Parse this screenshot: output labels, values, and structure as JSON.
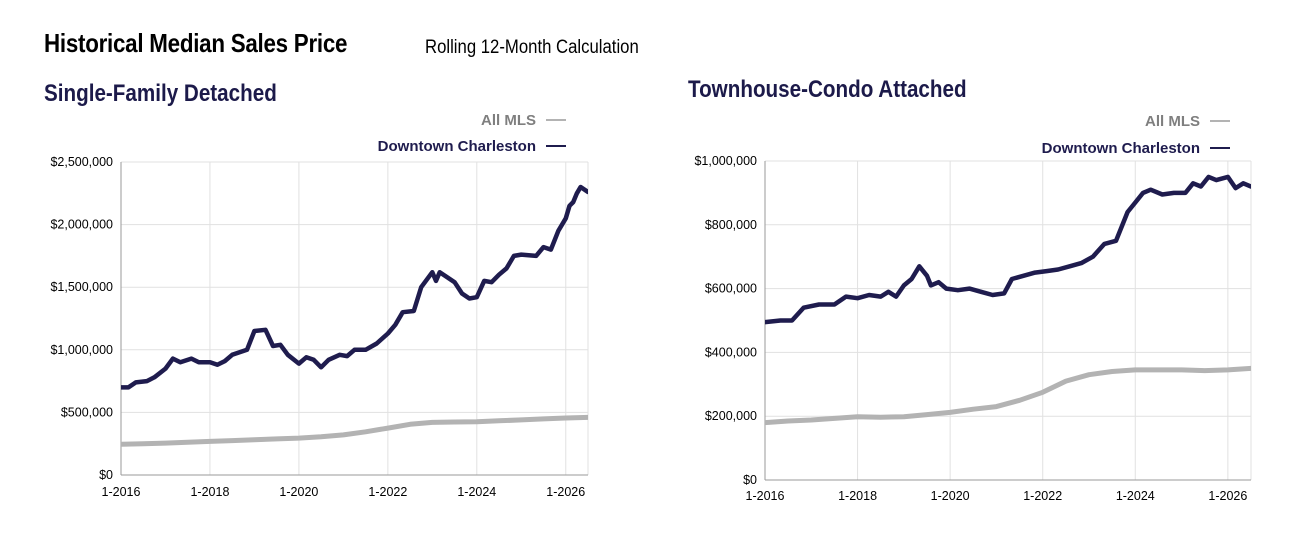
{
  "header": {
    "title": "Historical Median Sales Price",
    "subtitle": "Rolling 12-Month Calculation"
  },
  "colors": {
    "all_mls": "#b3b3b3",
    "downtown": "#1f1c4e",
    "grid": "#e1e1e1",
    "legend_all_mls_text": "#7f7f7f"
  },
  "chart_data": [
    {
      "type": "line",
      "title": "Single-Family Detached",
      "legend": [
        "All MLS",
        "Downtown Charleston"
      ],
      "legend_placement": "top-right",
      "x_ticks": [
        "1-2016",
        "1-2018",
        "1-2020",
        "1-2022",
        "1-2024",
        "1-2026"
      ],
      "y_ticks": [
        "$0",
        "$500,000",
        "$1,000,000",
        "$1,500,000",
        "$2,000,000",
        "$2,500,000"
      ],
      "xlim": [
        "2016-01",
        "2026-07"
      ],
      "ylim": [
        0,
        2500000
      ],
      "grid": true,
      "series": [
        {
          "name": "All MLS",
          "points": [
            [
              "2016-01",
              245000
            ],
            [
              "2016-07",
              250000
            ],
            [
              "2017-01",
              255000
            ],
            [
              "2017-07",
              262000
            ],
            [
              "2018-01",
              268000
            ],
            [
              "2018-07",
              275000
            ],
            [
              "2019-01",
              282000
            ],
            [
              "2019-07",
              288000
            ],
            [
              "2020-01",
              295000
            ],
            [
              "2020-07",
              305000
            ],
            [
              "2021-01",
              320000
            ],
            [
              "2021-07",
              345000
            ],
            [
              "2022-01",
              375000
            ],
            [
              "2022-07",
              405000
            ],
            [
              "2023-01",
              420000
            ],
            [
              "2023-07",
              423000
            ],
            [
              "2024-01",
              425000
            ],
            [
              "2024-07",
              433000
            ],
            [
              "2025-01",
              440000
            ],
            [
              "2025-07",
              448000
            ],
            [
              "2026-01",
              455000
            ],
            [
              "2026-07",
              460000
            ]
          ]
        },
        {
          "name": "Downtown Charleston",
          "points": [
            [
              "2016-01",
              700000
            ],
            [
              "2016-03",
              700000
            ],
            [
              "2016-05",
              740000
            ],
            [
              "2016-08",
              750000
            ],
            [
              "2016-10",
              780000
            ],
            [
              "2017-01",
              850000
            ],
            [
              "2017-03",
              930000
            ],
            [
              "2017-05",
              900000
            ],
            [
              "2017-08",
              930000
            ],
            [
              "2017-10",
              900000
            ],
            [
              "2018-01",
              900000
            ],
            [
              "2018-03",
              880000
            ],
            [
              "2018-05",
              910000
            ],
            [
              "2018-07",
              960000
            ],
            [
              "2018-09",
              980000
            ],
            [
              "2018-11",
              1000000
            ],
            [
              "2019-01",
              1150000
            ],
            [
              "2019-04",
              1160000
            ],
            [
              "2019-06",
              1030000
            ],
            [
              "2019-08",
              1040000
            ],
            [
              "2019-10",
              960000
            ],
            [
              "2020-01",
              890000
            ],
            [
              "2020-03",
              940000
            ],
            [
              "2020-05",
              920000
            ],
            [
              "2020-07",
              860000
            ],
            [
              "2020-09",
              920000
            ],
            [
              "2020-12",
              960000
            ],
            [
              "2021-02",
              950000
            ],
            [
              "2021-04",
              1000000
            ],
            [
              "2021-07",
              1000000
            ],
            [
              "2021-10",
              1050000
            ],
            [
              "2022-01",
              1130000
            ],
            [
              "2022-03",
              1200000
            ],
            [
              "2022-05",
              1300000
            ],
            [
              "2022-08",
              1310000
            ],
            [
              "2022-10",
              1500000
            ],
            [
              "2023-01",
              1620000
            ],
            [
              "2023-02",
              1550000
            ],
            [
              "2023-03",
              1620000
            ],
            [
              "2023-05",
              1580000
            ],
            [
              "2023-07",
              1540000
            ],
            [
              "2023-09",
              1450000
            ],
            [
              "2023-11",
              1410000
            ],
            [
              "2024-01",
              1420000
            ],
            [
              "2024-03",
              1550000
            ],
            [
              "2024-05",
              1540000
            ],
            [
              "2024-07",
              1600000
            ],
            [
              "2024-09",
              1650000
            ],
            [
              "2024-11",
              1750000
            ],
            [
              "2025-01",
              1760000
            ],
            [
              "2025-05",
              1750000
            ],
            [
              "2025-07",
              1820000
            ],
            [
              "2025-09",
              1800000
            ],
            [
              "2025-11",
              1950000
            ],
            [
              "2026-01",
              2050000
            ],
            [
              "2026-02",
              2150000
            ],
            [
              "2026-03",
              2180000
            ],
            [
              "2026-04",
              2250000
            ],
            [
              "2026-05",
              2300000
            ],
            [
              "2026-07",
              2260000
            ]
          ]
        }
      ]
    },
    {
      "type": "line",
      "title": "Townhouse-Condo Attached",
      "legend": [
        "All MLS",
        "Downtown Charleston"
      ],
      "legend_placement": "top-right",
      "x_ticks": [
        "1-2016",
        "1-2018",
        "1-2020",
        "1-2022",
        "1-2024",
        "1-2026"
      ],
      "y_ticks": [
        "$0",
        "$200,000",
        "$400,000",
        "$600,000",
        "$800,000",
        "$1,000,000"
      ],
      "xlim": [
        "2016-01",
        "2026-07"
      ],
      "ylim": [
        0,
        1000000
      ],
      "grid": true,
      "series": [
        {
          "name": "All MLS",
          "points": [
            [
              "2016-01",
              180000
            ],
            [
              "2016-07",
              185000
            ],
            [
              "2017-01",
              188000
            ],
            [
              "2017-07",
              193000
            ],
            [
              "2018-01",
              198000
            ],
            [
              "2018-07",
              197000
            ],
            [
              "2019-01",
              198000
            ],
            [
              "2019-07",
              205000
            ],
            [
              "2020-01",
              212000
            ],
            [
              "2020-07",
              222000
            ],
            [
              "2021-01",
              230000
            ],
            [
              "2021-07",
              250000
            ],
            [
              "2022-01",
              275000
            ],
            [
              "2022-07",
              310000
            ],
            [
              "2023-01",
              330000
            ],
            [
              "2023-07",
              340000
            ],
            [
              "2024-01",
              345000
            ],
            [
              "2024-07",
              345000
            ],
            [
              "2025-01",
              345000
            ],
            [
              "2025-07",
              343000
            ],
            [
              "2026-01",
              345000
            ],
            [
              "2026-07",
              350000
            ]
          ]
        },
        {
          "name": "Downtown Charleston",
          "points": [
            [
              "2016-01",
              495000
            ],
            [
              "2016-05",
              500000
            ],
            [
              "2016-08",
              500000
            ],
            [
              "2016-11",
              540000
            ],
            [
              "2017-03",
              550000
            ],
            [
              "2017-07",
              550000
            ],
            [
              "2017-10",
              575000
            ],
            [
              "2018-01",
              570000
            ],
            [
              "2018-04",
              580000
            ],
            [
              "2018-07",
              575000
            ],
            [
              "2018-09",
              590000
            ],
            [
              "2018-11",
              575000
            ],
            [
              "2019-01",
              610000
            ],
            [
              "2019-03",
              630000
            ],
            [
              "2019-05",
              670000
            ],
            [
              "2019-07",
              640000
            ],
            [
              "2019-08",
              610000
            ],
            [
              "2019-10",
              620000
            ],
            [
              "2019-12",
              600000
            ],
            [
              "2020-03",
              595000
            ],
            [
              "2020-06",
              600000
            ],
            [
              "2020-09",
              590000
            ],
            [
              "2020-12",
              580000
            ],
            [
              "2021-03",
              585000
            ],
            [
              "2021-05",
              630000
            ],
            [
              "2021-08",
              640000
            ],
            [
              "2021-11",
              650000
            ],
            [
              "2022-02",
              655000
            ],
            [
              "2022-05",
              660000
            ],
            [
              "2022-08",
              670000
            ],
            [
              "2022-11",
              680000
            ],
            [
              "2023-02",
              700000
            ],
            [
              "2023-05",
              740000
            ],
            [
              "2023-08",
              750000
            ],
            [
              "2023-11",
              840000
            ],
            [
              "2024-01",
              870000
            ],
            [
              "2024-03",
              900000
            ],
            [
              "2024-05",
              910000
            ],
            [
              "2024-08",
              895000
            ],
            [
              "2024-11",
              900000
            ],
            [
              "2025-02",
              900000
            ],
            [
              "2025-04",
              930000
            ],
            [
              "2025-06",
              920000
            ],
            [
              "2025-08",
              950000
            ],
            [
              "2025-10",
              940000
            ],
            [
              "2026-01",
              950000
            ],
            [
              "2026-03",
              915000
            ],
            [
              "2026-05",
              930000
            ],
            [
              "2026-07",
              920000
            ]
          ]
        }
      ]
    }
  ]
}
